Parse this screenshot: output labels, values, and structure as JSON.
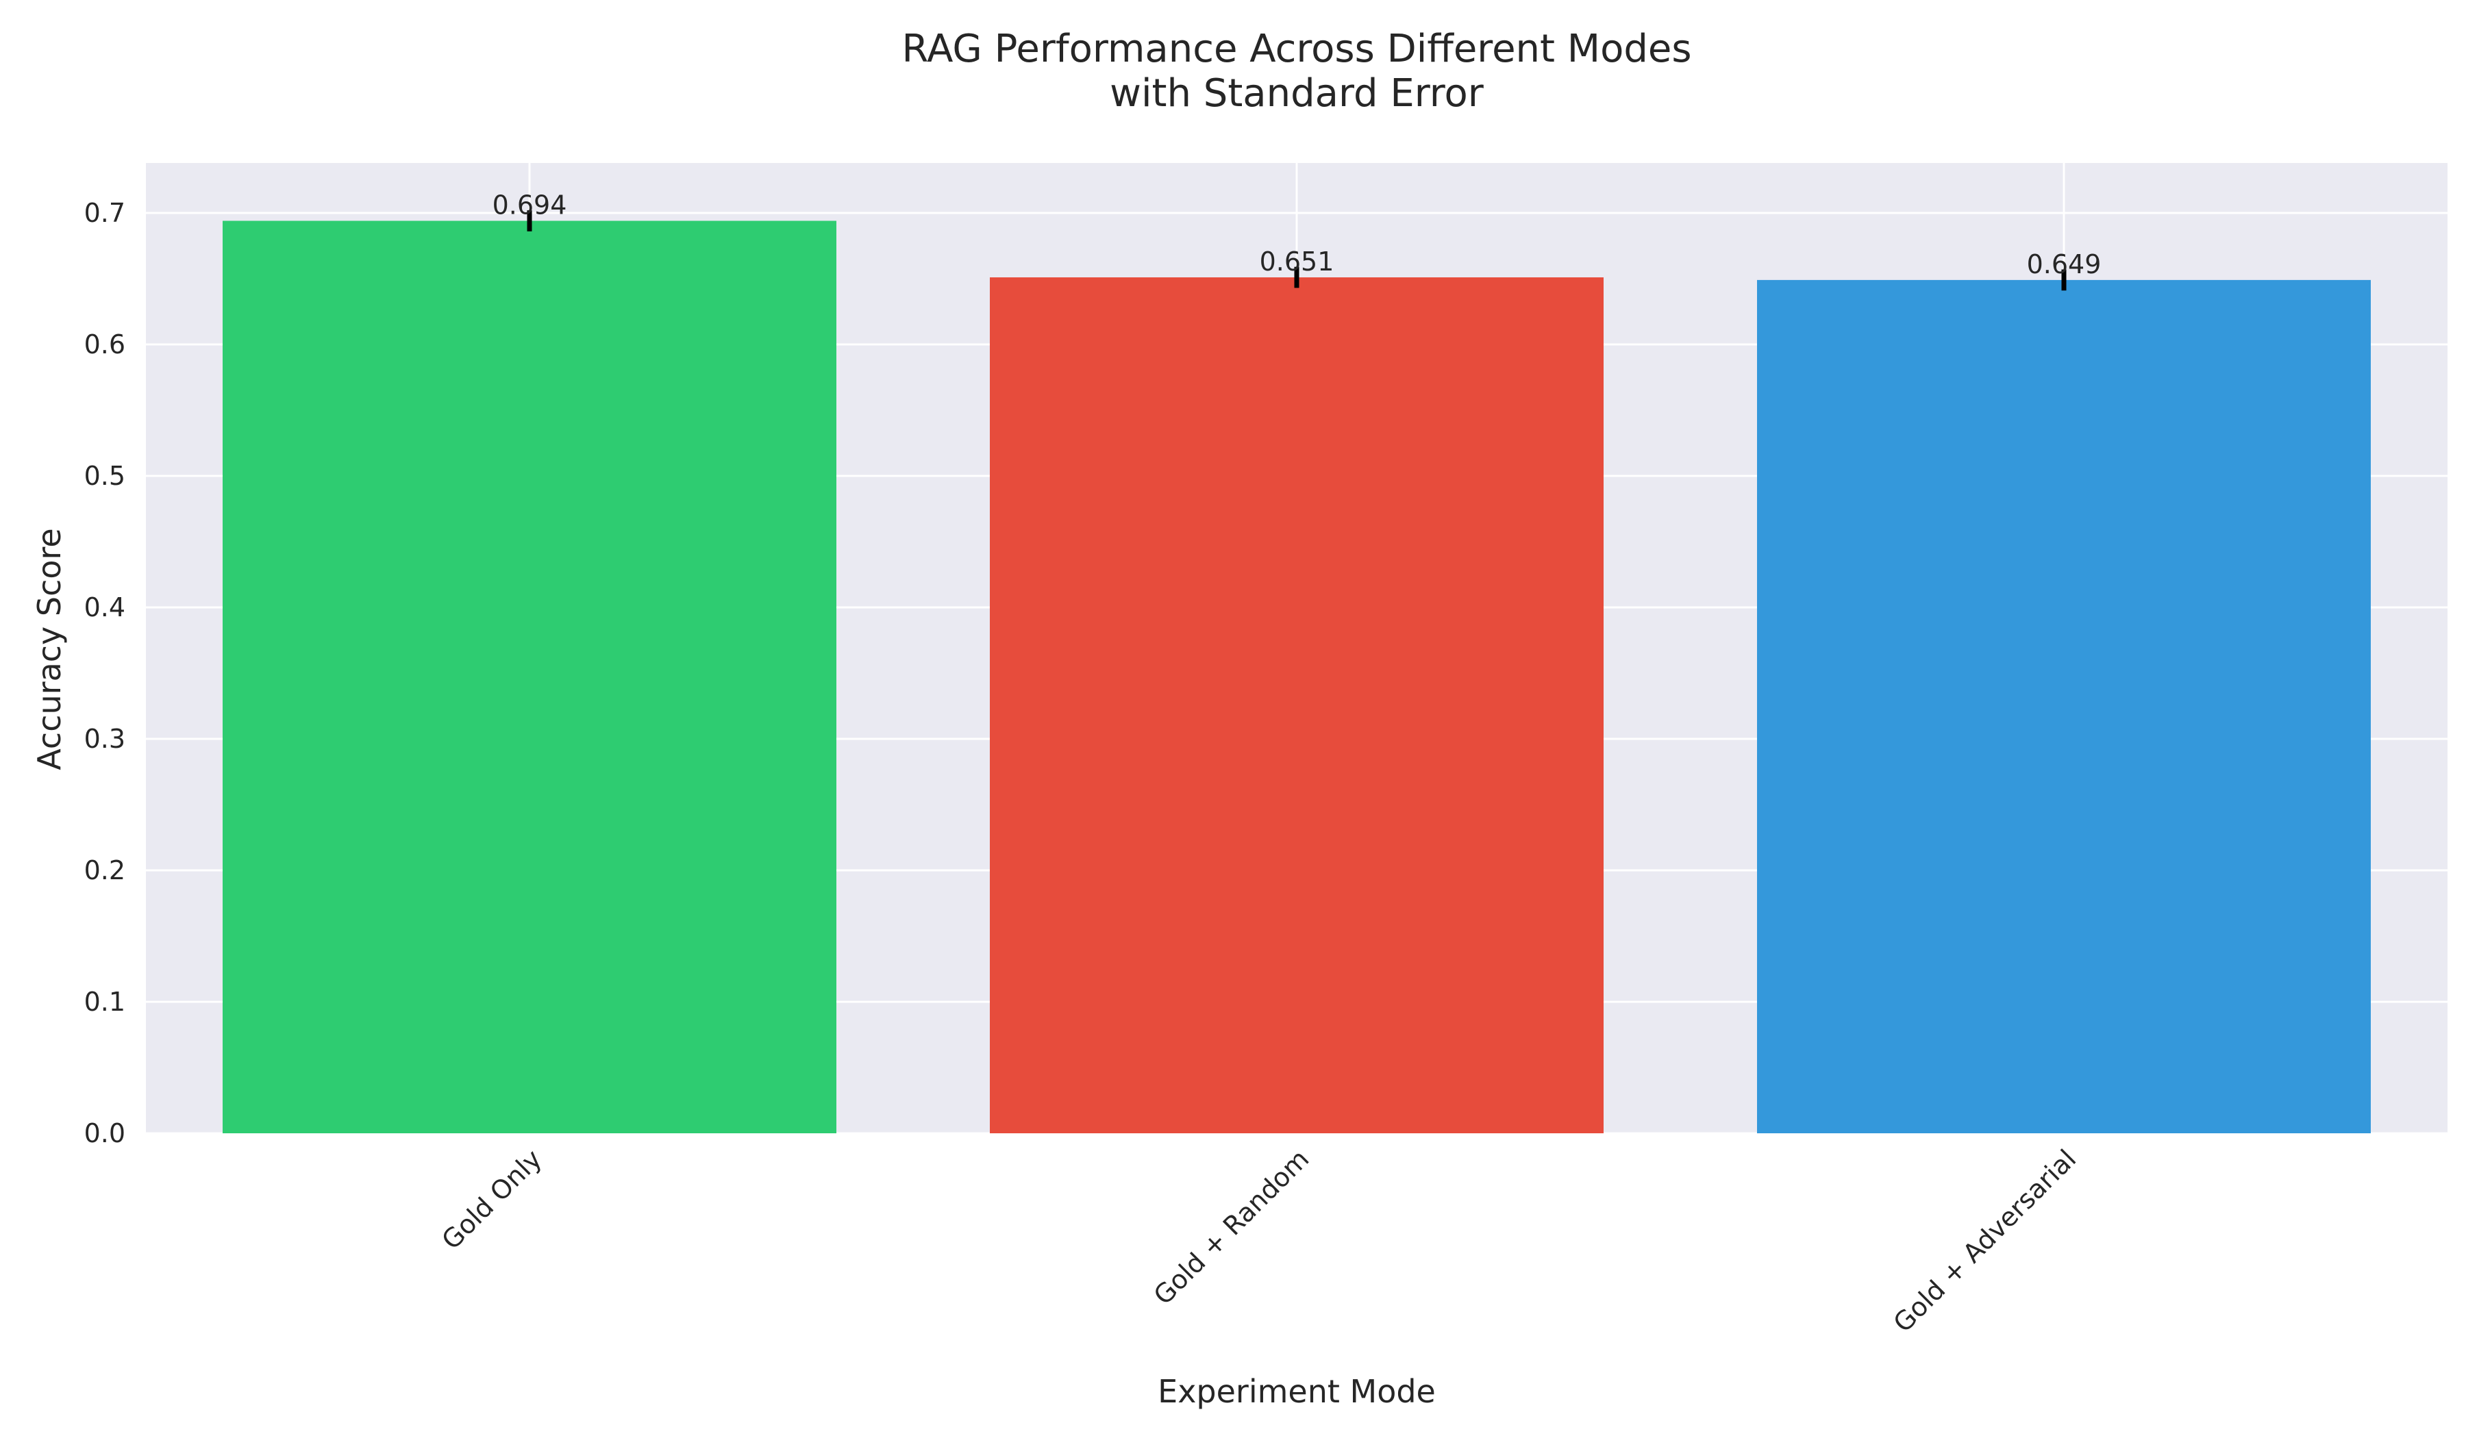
{
  "chart_data": {
    "type": "bar",
    "title": "RAG Performance Across Different Modes",
    "subtitle": "with Standard Error",
    "xlabel": "Experiment Mode",
    "ylabel": "Accuracy Score",
    "categories": [
      "Gold Only",
      "Gold + Random",
      "Gold + Adversarial"
    ],
    "values": [
      0.694,
      0.651,
      0.649
    ],
    "value_labels": [
      "0.694",
      "0.651",
      "0.649"
    ],
    "errors": [
      0.008,
      0.008,
      0.008
    ],
    "colors": [
      "#2ecc71",
      "#e74c3c",
      "#3498db"
    ],
    "ylim": [
      0,
      0.738
    ],
    "yticks": [
      0.0,
      0.1,
      0.2,
      0.3,
      0.4,
      0.5,
      0.6,
      0.7
    ],
    "ytick_labels": [
      "0.0",
      "0.1",
      "0.2",
      "0.3",
      "0.4",
      "0.5",
      "0.6",
      "0.7"
    ],
    "grid": true,
    "background_color": "#eaeaf2",
    "grid_color": "#ffffff",
    "errorbar_color": "#000000"
  }
}
